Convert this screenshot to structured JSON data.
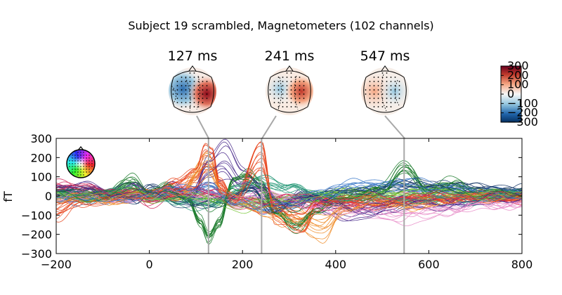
{
  "title": "Subject 19 scrambled, Magnetometers (102 channels)",
  "chart_data": {
    "type": "line",
    "title": "Subject 19 scrambled, Magnetometers (102 channels)",
    "xlabel": "",
    "ylabel": "fT",
    "xlim": [
      -200,
      800
    ],
    "ylim": [
      -300,
      300
    ],
    "xticks": [
      -200,
      0,
      200,
      400,
      600,
      800
    ],
    "yticks": [
      -300,
      -200,
      -100,
      0,
      100,
      200,
      300
    ],
    "xtick_labels": [
      "−200",
      "0",
      "200",
      "400",
      "600",
      "800"
    ],
    "ytick_labels": [
      "−300",
      "−200",
      "−100",
      "0",
      "100",
      "200",
      "300"
    ],
    "n_channels": 102,
    "grid": false,
    "topomap_times": [
      127,
      241,
      547
    ],
    "topomap_labels": [
      "127 ms",
      "241 ms",
      "547 ms"
    ],
    "colorbar": {
      "ticks": [
        300,
        200,
        100,
        0,
        -100,
        -200,
        -300
      ],
      "tick_labels": [
        "300",
        "200",
        "100",
        "0",
        "−100",
        "−200",
        "−300"
      ],
      "colormap": "RdBu_r"
    },
    "representative_series": [
      {
        "color": "#1a7a2a",
        "points": [
          [
            -200,
            20
          ],
          [
            -100,
            0
          ],
          [
            -40,
            90
          ],
          [
            0,
            10
          ],
          [
            40,
            60
          ],
          [
            80,
            0
          ],
          [
            110,
            -150
          ],
          [
            127,
            -240
          ],
          [
            150,
            -150
          ],
          [
            180,
            100
          ],
          [
            210,
            120
          ],
          [
            241,
            60
          ],
          [
            270,
            -80
          ],
          [
            320,
            -170
          ],
          [
            360,
            -90
          ],
          [
            400,
            -20
          ],
          [
            450,
            10
          ],
          [
            500,
            40
          ],
          [
            547,
            170
          ],
          [
            600,
            30
          ],
          [
            650,
            80
          ],
          [
            700,
            20
          ],
          [
            800,
            10
          ]
        ]
      },
      {
        "color": "#e8461e",
        "points": [
          [
            -200,
            -110
          ],
          [
            -150,
            -40
          ],
          [
            -100,
            -30
          ],
          [
            -40,
            20
          ],
          [
            0,
            -10
          ],
          [
            60,
            80
          ],
          [
            100,
            150
          ],
          [
            120,
            280
          ],
          [
            135,
            260
          ],
          [
            150,
            90
          ],
          [
            180,
            -30
          ],
          [
            241,
            280
          ],
          [
            270,
            -120
          ],
          [
            330,
            -190
          ],
          [
            360,
            -60
          ],
          [
            400,
            -30
          ],
          [
            450,
            -40
          ],
          [
            500,
            -60
          ],
          [
            547,
            -10
          ],
          [
            600,
            -30
          ],
          [
            700,
            -10
          ],
          [
            800,
            -20
          ]
        ]
      },
      {
        "color": "#4a2a8c",
        "points": [
          [
            -200,
            50
          ],
          [
            -130,
            60
          ],
          [
            -80,
            20
          ],
          [
            -30,
            80
          ],
          [
            0,
            0
          ],
          [
            50,
            60
          ],
          [
            90,
            0
          ],
          [
            127,
            220
          ],
          [
            160,
            290
          ],
          [
            200,
            140
          ],
          [
            241,
            60
          ],
          [
            280,
            -60
          ],
          [
            330,
            20
          ],
          [
            380,
            -80
          ],
          [
            450,
            -120
          ],
          [
            520,
            -80
          ],
          [
            547,
            -40
          ],
          [
            620,
            -60
          ],
          [
            700,
            -30
          ],
          [
            800,
            0
          ]
        ]
      },
      {
        "color": "#e88cc8",
        "points": [
          [
            -200,
            -20
          ],
          [
            -140,
            10
          ],
          [
            -60,
            -20
          ],
          [
            0,
            0
          ],
          [
            60,
            40
          ],
          [
            120,
            0
          ],
          [
            180,
            -20
          ],
          [
            241,
            20
          ],
          [
            300,
            -40
          ],
          [
            380,
            -100
          ],
          [
            450,
            -100
          ],
          [
            520,
            -140
          ],
          [
            580,
            -130
          ],
          [
            640,
            -100
          ],
          [
            720,
            -60
          ],
          [
            800,
            -60
          ]
        ]
      },
      {
        "color": "#1a3a6a",
        "points": [
          [
            -200,
            20
          ],
          [
            -130,
            30
          ],
          [
            -80,
            0
          ],
          [
            -30,
            -30
          ],
          [
            0,
            40
          ],
          [
            60,
            -30
          ],
          [
            110,
            -40
          ],
          [
            160,
            -40
          ],
          [
            220,
            40
          ],
          [
            260,
            -60
          ],
          [
            310,
            -60
          ],
          [
            360,
            -10
          ],
          [
            420,
            40
          ],
          [
            480,
            20
          ],
          [
            547,
            60
          ],
          [
            620,
            60
          ],
          [
            700,
            40
          ],
          [
            800,
            30
          ]
        ]
      },
      {
        "color": "#f08c28",
        "points": [
          [
            -200,
            -20
          ],
          [
            -140,
            0
          ],
          [
            -80,
            -30
          ],
          [
            0,
            20
          ],
          [
            60,
            0
          ],
          [
            127,
            200
          ],
          [
            160,
            0
          ],
          [
            241,
            -80
          ],
          [
            300,
            -140
          ],
          [
            370,
            -200
          ],
          [
            420,
            -80
          ],
          [
            480,
            -30
          ],
          [
            547,
            -60
          ],
          [
            620,
            -30
          ],
          [
            700,
            0
          ],
          [
            800,
            0
          ]
        ]
      },
      {
        "color": "#2a9a7a",
        "points": [
          [
            -200,
            10
          ],
          [
            -120,
            -10
          ],
          [
            -60,
            40
          ],
          [
            0,
            0
          ],
          [
            70,
            -40
          ],
          [
            127,
            -60
          ],
          [
            190,
            40
          ],
          [
            241,
            90
          ],
          [
            300,
            60
          ],
          [
            360,
            -10
          ],
          [
            420,
            -20
          ],
          [
            500,
            -40
          ],
          [
            547,
            -20
          ],
          [
            620,
            -30
          ],
          [
            700,
            -20
          ],
          [
            800,
            0
          ]
        ]
      },
      {
        "color": "#d0285a",
        "points": [
          [
            -200,
            80
          ],
          [
            -150,
            60
          ],
          [
            -90,
            40
          ],
          [
            -30,
            10
          ],
          [
            0,
            -40
          ],
          [
            60,
            20
          ],
          [
            127,
            40
          ],
          [
            190,
            -60
          ],
          [
            241,
            -70
          ],
          [
            300,
            -30
          ],
          [
            360,
            -50
          ],
          [
            420,
            -60
          ],
          [
            500,
            -30
          ],
          [
            547,
            -20
          ],
          [
            620,
            -10
          ],
          [
            700,
            0
          ],
          [
            800,
            -10
          ]
        ]
      },
      {
        "color": "#7ac83a",
        "points": [
          [
            -200,
            10
          ],
          [
            -120,
            0
          ],
          [
            -40,
            30
          ],
          [
            0,
            -10
          ],
          [
            80,
            10
          ],
          [
            127,
            -20
          ],
          [
            200,
            -60
          ],
          [
            241,
            -40
          ],
          [
            300,
            -20
          ],
          [
            380,
            10
          ],
          [
            450,
            30
          ],
          [
            547,
            20
          ],
          [
            620,
            40
          ],
          [
            700,
            20
          ],
          [
            800,
            10
          ]
        ]
      },
      {
        "color": "#3a78c8",
        "points": [
          [
            -200,
            -10
          ],
          [
            -140,
            -30
          ],
          [
            -60,
            -10
          ],
          [
            0,
            20
          ],
          [
            90,
            30
          ],
          [
            127,
            60
          ],
          [
            190,
            -30
          ],
          [
            241,
            -90
          ],
          [
            300,
            -50
          ],
          [
            360,
            10
          ],
          [
            450,
            60
          ],
          [
            547,
            80
          ],
          [
            620,
            40
          ],
          [
            700,
            30
          ],
          [
            800,
            10
          ]
        ]
      }
    ]
  }
}
